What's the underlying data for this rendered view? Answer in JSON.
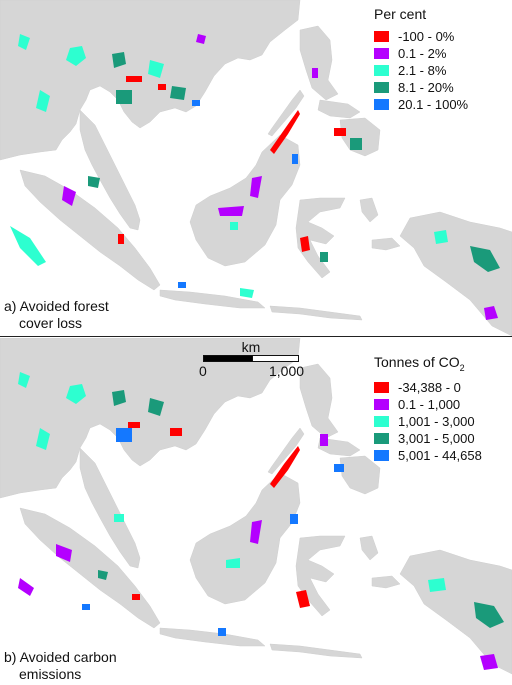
{
  "panel_a": {
    "label_line1": "a) Avoided forest",
    "label_line2": "cover loss",
    "legend_title": "Per cent",
    "legend": [
      {
        "label": "-100 - 0%",
        "color": "#ff0000"
      },
      {
        "label": "0.1 - 2%",
        "color": "#b400ff"
      },
      {
        "label": "2.1 - 8%",
        "color": "#2dffd0"
      },
      {
        "label": "8.1 - 20%",
        "color": "#1a9a7a"
      },
      {
        "label": "20.1 - 100%",
        "color": "#1478ff"
      }
    ]
  },
  "panel_b": {
    "label_line1": "b) Avoided carbon",
    "label_line2": "emissions",
    "legend_title": "Tonnes of CO",
    "legend_title_sub": "2",
    "legend": [
      {
        "label": "-34,388 - 0",
        "color": "#ff0000"
      },
      {
        "label": "0.1 - 1,000",
        "color": "#b400ff"
      },
      {
        "label": "1,001 - 3,000",
        "color": "#2dffd0"
      },
      {
        "label": "3,001 - 5,000",
        "color": "#1a9a7a"
      },
      {
        "label": "5,001 - 44,658",
        "color": "#1478ff"
      }
    ],
    "scale": {
      "unit": "km",
      "min": "0",
      "max": "1,000"
    }
  },
  "colors": {
    "land": "#d6d6d6",
    "background": "#ffffff"
  }
}
